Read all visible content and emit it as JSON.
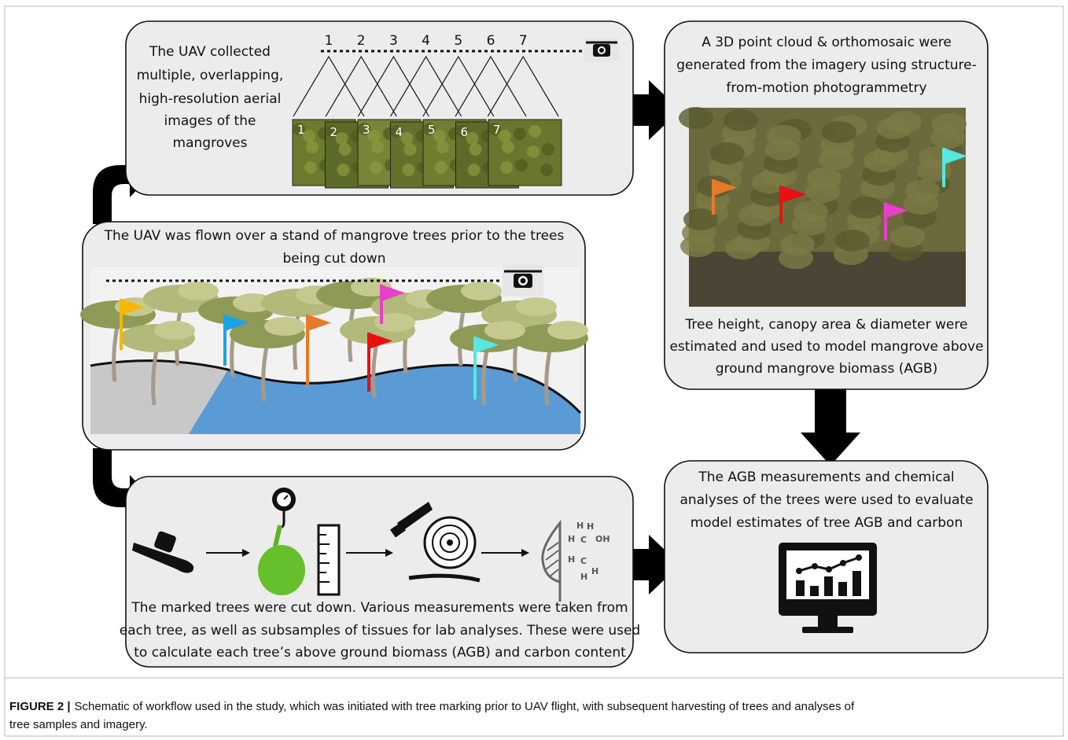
{
  "boxes": {
    "uav_collection": {
      "lines": [
        "The UAV collected",
        "multiple, overlapping,",
        "high-resolution aerial",
        "images of the",
        "mangroves"
      ]
    },
    "point_cloud": {
      "lines_top": [
        "A 3D point cloud & orthomosaic were",
        "generated from the imagery using structure-",
        "from-motion photogrammetry"
      ],
      "lines_bottom": [
        "Tree height, canopy area & diameter were",
        "estimated and used to model mangrove above",
        "ground mangrove biomass (AGB)"
      ]
    },
    "flight": {
      "lines": [
        "The UAV was flown over a stand of mangrove trees prior to the trees",
        "being cut down"
      ]
    },
    "harvest": {
      "lines": [
        "The marked trees were cut down. Various measurements were taken from",
        "each tree, as well as subsamples of tissues for lab analyses. These were used",
        "to calculate each tree’s above ground biomass (AGB) and carbon content"
      ]
    },
    "evaluation": {
      "lines": [
        "The AGB measurements and chemical",
        "analyses of the trees were used to evaluate",
        "model estimates of tree AGB and carbon"
      ]
    }
  },
  "flight_numbers": [
    "1",
    "2",
    "3",
    "4",
    "5",
    "6",
    "7"
  ],
  "image_numbers": [
    "1",
    "2",
    "3",
    "4",
    "5",
    "6",
    "7"
  ],
  "molecule_atoms": [
    "H",
    "H",
    "OH",
    "H",
    "C",
    "C",
    "H",
    "H",
    "H"
  ],
  "caption": {
    "label": "FIGURE 2 |",
    "lines": [
      "Schematic of workflow used in the study, which was initiated with tree marking prior to UAV flight, with subsequent harvesting of trees and analyses of",
      "tree samples and imagery."
    ]
  }
}
